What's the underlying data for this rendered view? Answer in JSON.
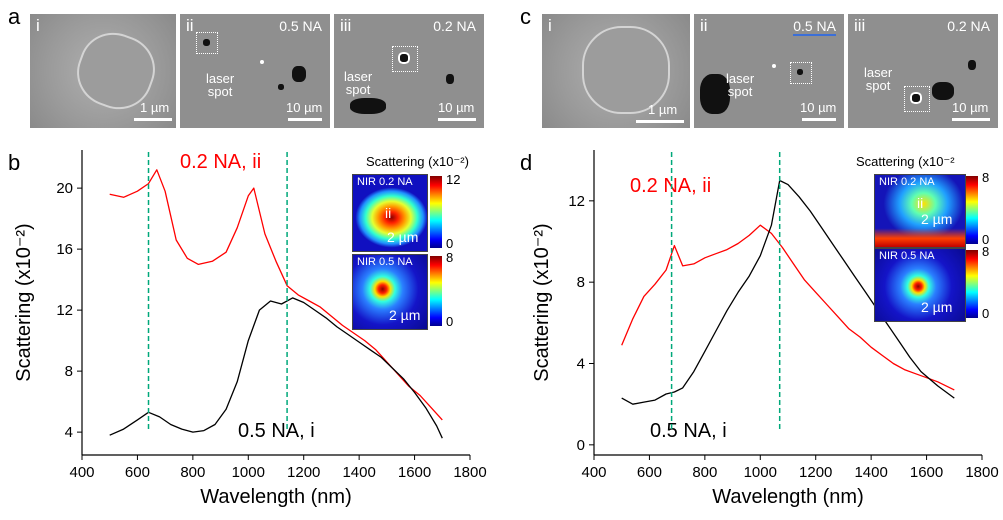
{
  "panels": {
    "a": "a",
    "b": "b",
    "c": "c",
    "d": "d"
  },
  "images_left": {
    "i": {
      "tag": "i",
      "scale": "1 µm"
    },
    "ii": {
      "tag": "ii",
      "na": "0.5 NA",
      "laser": "laser\nspot",
      "scale": "10 µm"
    },
    "iii": {
      "tag": "iii",
      "na": "0.2 NA",
      "laser": "laser\nspot",
      "scale": "10 µm"
    }
  },
  "images_right": {
    "i": {
      "tag": "i",
      "scale": "1 µm"
    },
    "ii": {
      "tag": "ii",
      "na": "0.5 NA",
      "laser": "laser\nspot",
      "scale": "10 µm"
    },
    "iii": {
      "tag": "iii",
      "na": "0.2 NA",
      "laser": "laser\nspot",
      "scale": "10 µm"
    }
  },
  "insets_left": {
    "title": "Scattering (x10⁻²)",
    "top": {
      "label": "NIR 0.2 NA",
      "roman": "ii",
      "scale": "2 µm",
      "cb_max": "12",
      "cb_min": "0"
    },
    "bottom": {
      "label": "NIR 0.5 NA",
      "scale": "2 µm",
      "cb_max": "8",
      "cb_min": "0"
    }
  },
  "insets_right": {
    "title": "Scattering (x10⁻²",
    "top": {
      "label": "NIR 0.2 NA",
      "roman": "ii",
      "scale": "2 µm",
      "cb_max": "8",
      "cb_min": "0"
    },
    "bottom": {
      "label": "NIR 0.5 NA",
      "scale": "2 µm",
      "cb_max": "8",
      "cb_min": "0"
    }
  },
  "colors": {
    "red": "#ff0000",
    "black": "#000000",
    "guide": "#00a87a"
  },
  "chart_data": [
    {
      "type": "line",
      "xlabel": "Wavelength (nm)",
      "ylabel": "Scattering (x10⁻²)",
      "xlim": [
        400,
        1800
      ],
      "ylim": [
        2.5,
        22.5
      ],
      "xticks": [
        400,
        600,
        800,
        1000,
        1200,
        1400,
        1600,
        1800
      ],
      "yticks": [
        4,
        8,
        12,
        16,
        20
      ],
      "guides": [
        640,
        1140
      ],
      "series": [
        {
          "name": "0.2 NA, ii",
          "color": "#ff0000",
          "x": [
            500,
            550,
            600,
            640,
            670,
            700,
            740,
            780,
            820,
            870,
            920,
            960,
            1000,
            1020,
            1060,
            1100,
            1140,
            1180,
            1220,
            1260,
            1300,
            1340,
            1380,
            1420,
            1460,
            1500,
            1540,
            1580,
            1620,
            1660,
            1700
          ],
          "y": [
            19.6,
            19.4,
            19.8,
            20.3,
            21.2,
            19.8,
            16.6,
            15.4,
            15.0,
            15.2,
            15.8,
            17.4,
            19.5,
            20.0,
            17.0,
            15.2,
            13.6,
            13.0,
            12.6,
            12.2,
            11.6,
            11.0,
            10.5,
            10.0,
            9.4,
            8.6,
            7.8,
            7.0,
            6.4,
            5.6,
            4.8
          ]
        },
        {
          "name": "0.5 NA, i",
          "color": "#000000",
          "x": [
            500,
            550,
            600,
            640,
            680,
            720,
            760,
            800,
            840,
            880,
            920,
            960,
            1000,
            1040,
            1080,
            1120,
            1160,
            1200,
            1240,
            1280,
            1320,
            1360,
            1400,
            1440,
            1480,
            1520,
            1560,
            1600,
            1640,
            1680,
            1700
          ],
          "y": [
            3.8,
            4.2,
            4.8,
            5.3,
            5.0,
            4.5,
            4.2,
            4.0,
            4.1,
            4.5,
            5.5,
            7.3,
            10.0,
            12.0,
            12.6,
            12.4,
            12.8,
            12.5,
            12.0,
            11.5,
            10.9,
            10.4,
            9.9,
            9.4,
            8.9,
            8.2,
            7.5,
            6.6,
            5.6,
            4.4,
            3.6
          ]
        }
      ]
    },
    {
      "type": "line",
      "xlabel": "Wavelength (nm)",
      "ylabel": "Scattering (x10⁻²)",
      "xlim": [
        400,
        1800
      ],
      "ylim": [
        -0.5,
        14.5
      ],
      "xticks": [
        400,
        600,
        800,
        1000,
        1200,
        1400,
        1600,
        1800
      ],
      "yticks": [
        0,
        4,
        8,
        12
      ],
      "guides": [
        680,
        1070
      ],
      "series": [
        {
          "name": "0.2 NA, ii",
          "color": "#ff0000",
          "x": [
            500,
            540,
            580,
            620,
            660,
            690,
            720,
            760,
            800,
            840,
            880,
            920,
            960,
            1000,
            1040,
            1080,
            1120,
            1160,
            1200,
            1240,
            1280,
            1320,
            1360,
            1400,
            1440,
            1480,
            1520,
            1560,
            1600,
            1640,
            1700
          ],
          "y": [
            4.9,
            6.2,
            7.3,
            7.9,
            8.6,
            9.8,
            8.8,
            8.9,
            9.2,
            9.4,
            9.6,
            9.9,
            10.3,
            10.8,
            10.4,
            9.7,
            8.9,
            8.1,
            7.5,
            6.9,
            6.3,
            5.7,
            5.3,
            4.8,
            4.4,
            4.0,
            3.7,
            3.5,
            3.3,
            3.1,
            2.7
          ]
        },
        {
          "name": "0.5 NA, i",
          "color": "#000000",
          "x": [
            500,
            540,
            580,
            620,
            660,
            690,
            720,
            760,
            800,
            840,
            880,
            920,
            960,
            1000,
            1040,
            1070,
            1100,
            1140,
            1180,
            1220,
            1260,
            1300,
            1340,
            1380,
            1420,
            1460,
            1500,
            1540,
            1580,
            1640,
            1700
          ],
          "y": [
            2.3,
            2.0,
            2.1,
            2.2,
            2.5,
            2.6,
            2.8,
            3.6,
            4.6,
            5.6,
            6.6,
            7.5,
            8.3,
            9.3,
            10.8,
            13.0,
            12.8,
            12.2,
            11.5,
            10.7,
            9.9,
            9.1,
            8.3,
            7.5,
            6.7,
            5.9,
            5.1,
            4.3,
            3.6,
            2.9,
            2.3
          ]
        }
      ]
    }
  ]
}
